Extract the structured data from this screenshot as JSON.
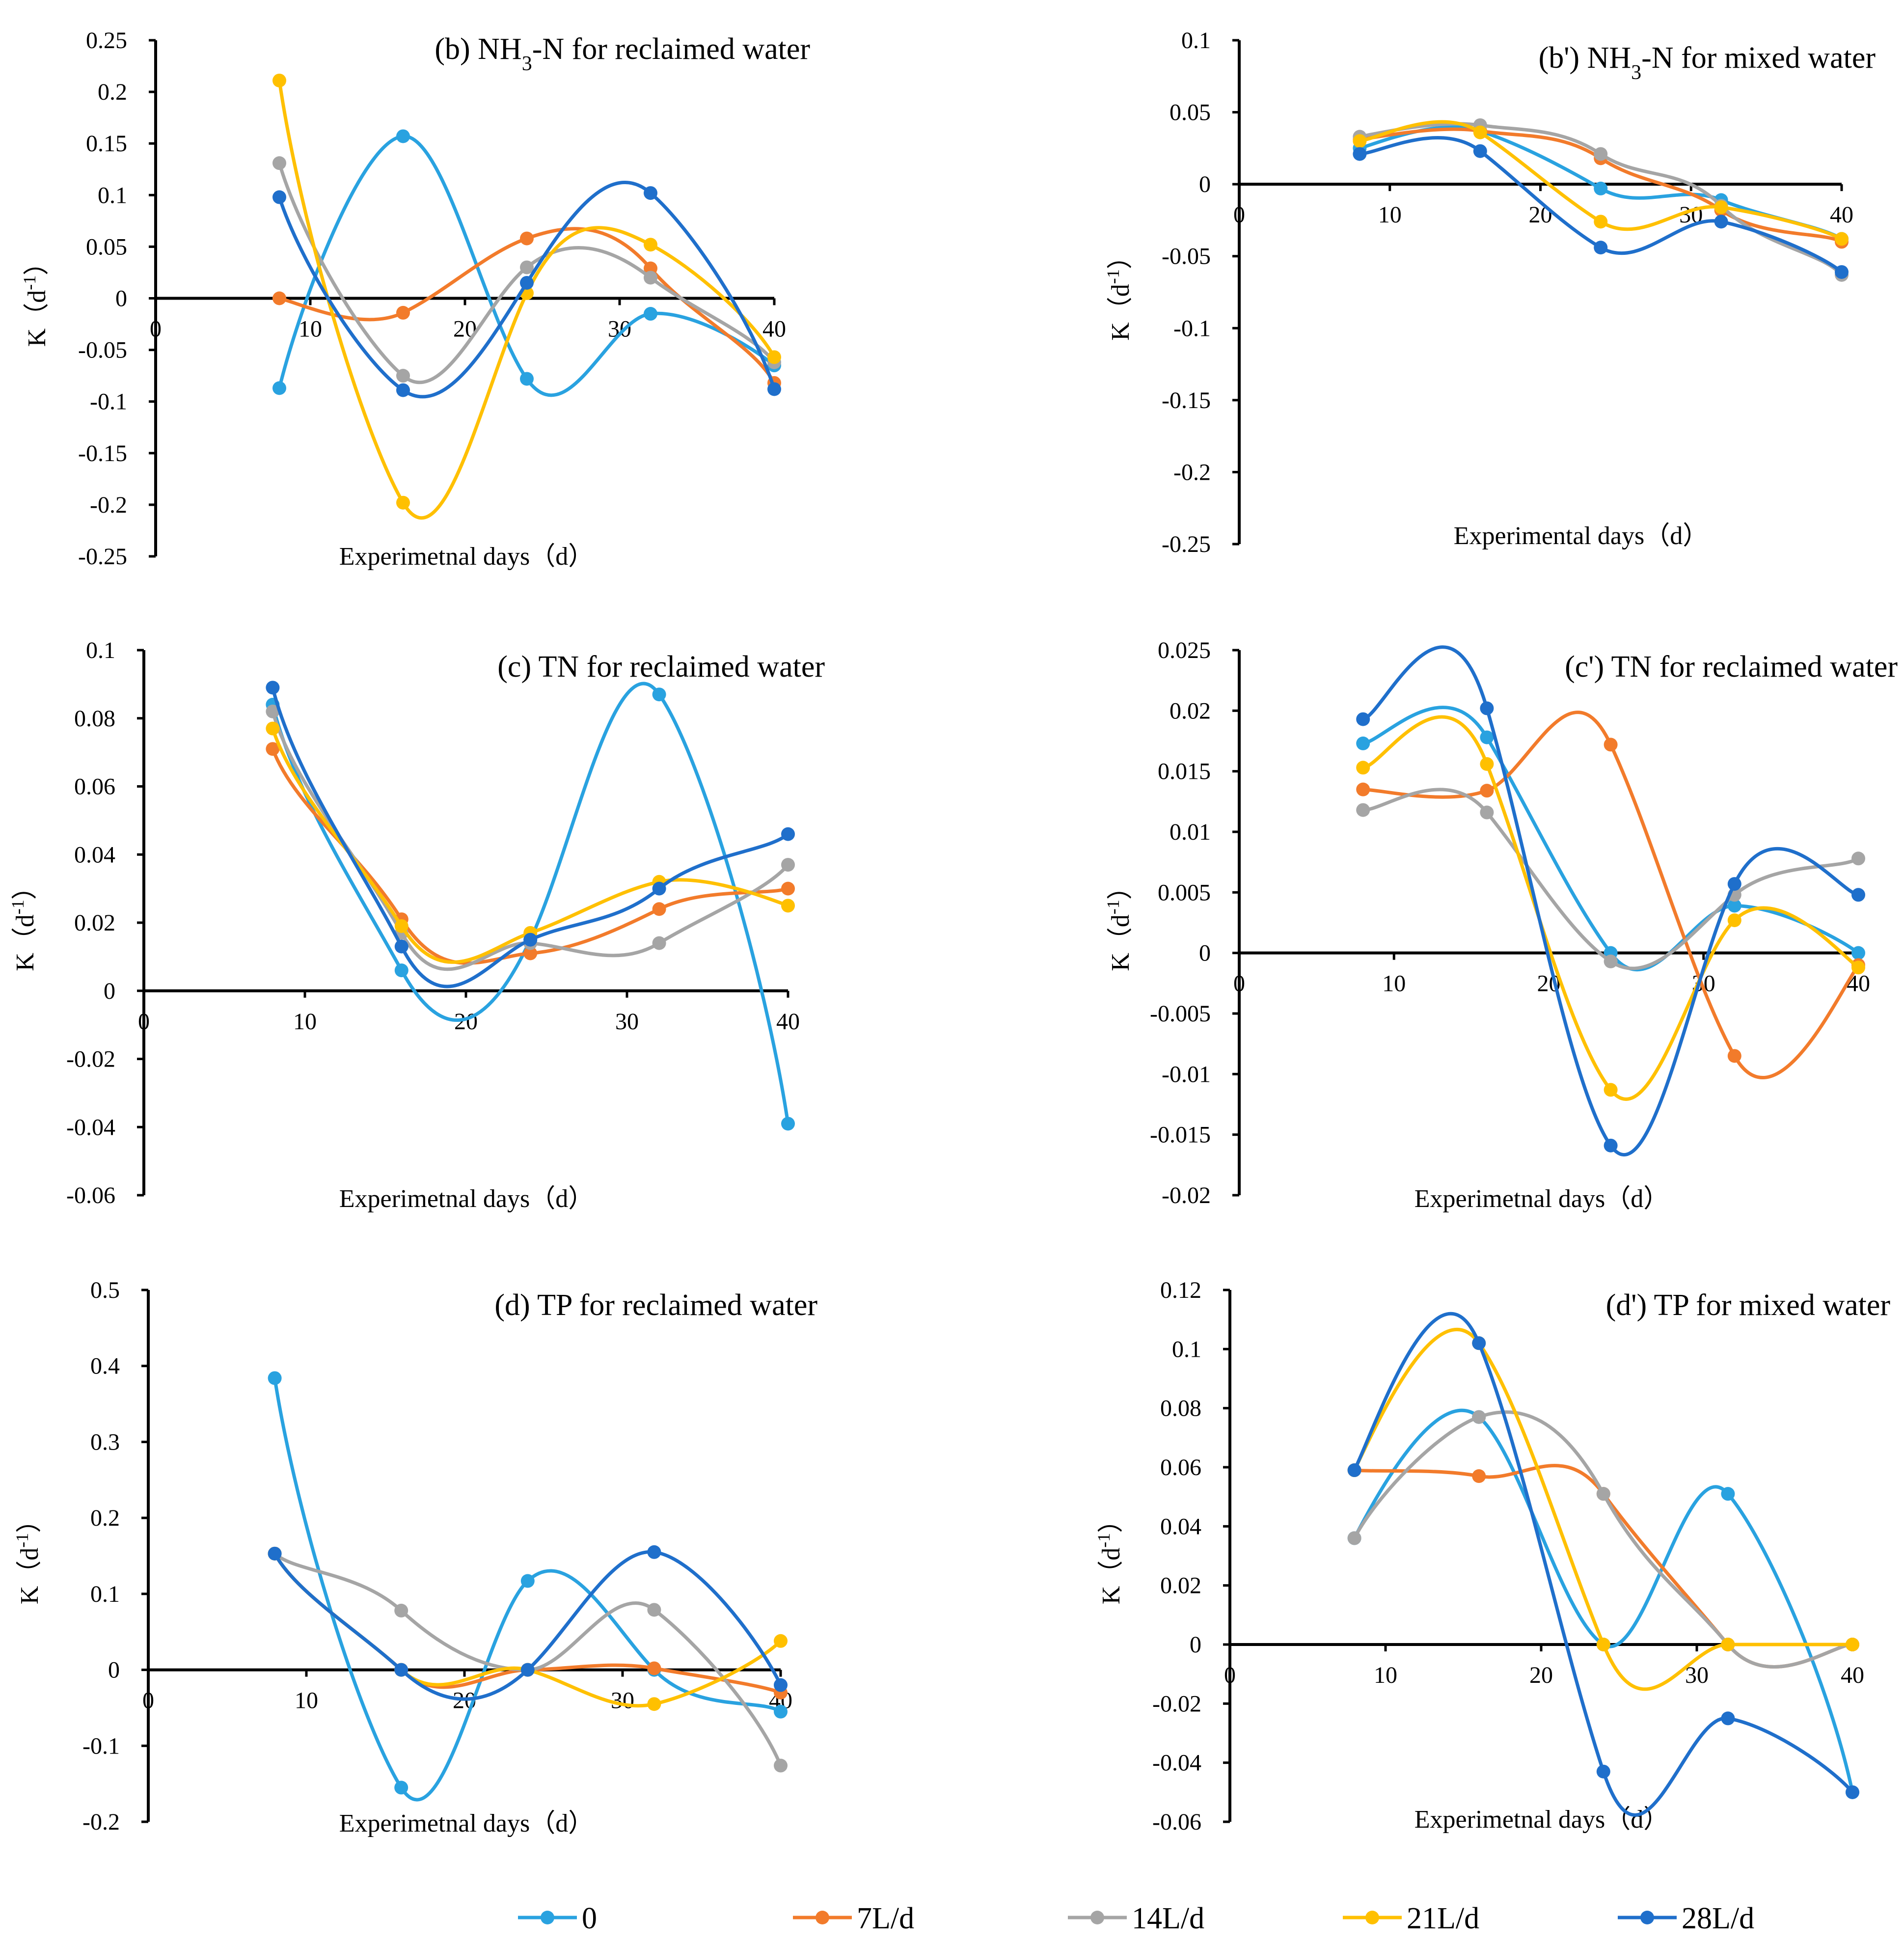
{
  "legend": {
    "entries": [
      {
        "name": "0",
        "color": "#29A2E0"
      },
      {
        "name": "7L/d",
        "color": "#F27B2B"
      },
      {
        "name": "14L/d",
        "color": "#A5A5A5"
      },
      {
        "name": "21L/d",
        "color": "#FFC000"
      },
      {
        "name": "28L/d",
        "color": "#1F6FCB"
      }
    ]
  },
  "chart_data": [
    {
      "type": "line",
      "title_parts": [
        "(b) NH",
        "3",
        "-N for reclaimed water"
      ],
      "xlabel": "Experimetnal days（d）",
      "ylabel_parts": [
        "K（d",
        "-1",
        "）"
      ],
      "xlim": [
        0,
        40
      ],
      "ylim": [
        -0.25,
        0.25
      ],
      "xticks": [
        0,
        10,
        20,
        30,
        40
      ],
      "xtick_labels": [
        "0",
        "10",
        "20",
        "30",
        "40"
      ],
      "yticks": [
        -0.25,
        -0.2,
        -0.15,
        -0.1,
        -0.05,
        0,
        0.05,
        0.1,
        0.15,
        0.2,
        0.25
      ],
      "ytick_labels": [
        "-0.25",
        "-0.2",
        "-0.15",
        "-0.1",
        "-0.05",
        "0",
        "0.05",
        "0.1",
        "0.15",
        "0.2",
        "0.25"
      ],
      "x": [
        8,
        16,
        24,
        32,
        40
      ],
      "series": [
        {
          "name": "0",
          "values": [
            -0.087,
            0.157,
            -0.078,
            -0.015,
            -0.065
          ]
        },
        {
          "name": "7L/d",
          "values": [
            0.0,
            -0.014,
            0.058,
            0.029,
            -0.082
          ]
        },
        {
          "name": "14L/d",
          "values": [
            0.131,
            -0.075,
            0.03,
            0.02,
            -0.062
          ]
        },
        {
          "name": "21L/d",
          "values": [
            0.211,
            -0.198,
            0.005,
            0.052,
            -0.057
          ]
        },
        {
          "name": "28L/d",
          "values": [
            0.098,
            -0.089,
            0.015,
            0.102,
            -0.088
          ]
        }
      ]
    },
    {
      "type": "line",
      "title_parts": [
        "(b') NH",
        "3",
        "-N for mixed water"
      ],
      "xlabel": "Experimental days（d）",
      "ylabel_parts": [
        "K（d",
        "-1",
        "）"
      ],
      "xlim": [
        0,
        40
      ],
      "ylim": [
        -0.25,
        0.1
      ],
      "xticks": [
        0,
        10,
        20,
        30,
        40
      ],
      "xtick_labels": [
        "0",
        "10",
        "20",
        "30",
        "40"
      ],
      "yticks": [
        -0.25,
        -0.2,
        -0.15,
        -0.1,
        -0.05,
        0,
        0.05,
        0.1
      ],
      "ytick_labels": [
        "-0.25",
        "-0.2",
        "-0.15",
        "-0.1",
        "-0.05",
        "0",
        "0.05",
        "0.1"
      ],
      "x": [
        8,
        16,
        24,
        32,
        40
      ],
      "series": [
        {
          "name": "0",
          "values": [
            0.025,
            0.037,
            -0.003,
            -0.011,
            -0.038
          ]
        },
        {
          "name": "7L/d",
          "values": [
            0.031,
            0.037,
            0.018,
            -0.018,
            -0.04
          ]
        },
        {
          "name": "14L/d",
          "values": [
            0.033,
            0.041,
            0.021,
            -0.015,
            -0.063
          ]
        },
        {
          "name": "21L/d",
          "values": [
            0.03,
            0.036,
            -0.026,
            -0.016,
            -0.038
          ]
        },
        {
          "name": "28L/d",
          "values": [
            0.021,
            0.023,
            -0.044,
            -0.026,
            -0.061
          ]
        }
      ]
    },
    {
      "type": "line",
      "title_parts": [
        "(c) TN for reclaimed water"
      ],
      "xlabel": "Experimetnal days（d）",
      "ylabel_parts": [
        "K（d",
        "-1",
        "）"
      ],
      "xlim": [
        0,
        40
      ],
      "ylim": [
        -0.06,
        0.1
      ],
      "xticks": [
        0,
        10,
        20,
        30,
        40
      ],
      "xtick_labels": [
        "0",
        "10",
        "20",
        "30",
        "40"
      ],
      "yticks": [
        -0.06,
        -0.04,
        -0.02,
        0,
        0.02,
        0.04,
        0.06,
        0.08,
        0.1
      ],
      "ytick_labels": [
        "-0.06",
        "-0.04",
        "-0.02",
        "0",
        "0.02",
        "0.04",
        "0.06",
        "0.08",
        "0.1"
      ],
      "x": [
        8,
        16,
        24,
        32,
        40
      ],
      "series": [
        {
          "name": "0",
          "values": [
            0.084,
            0.006,
            0.015,
            0.087,
            -0.039
          ]
        },
        {
          "name": "7L/d",
          "values": [
            0.071,
            0.021,
            0.011,
            0.024,
            0.03
          ]
        },
        {
          "name": "14L/d",
          "values": [
            0.082,
            0.017,
            0.014,
            0.014,
            0.037
          ]
        },
        {
          "name": "21L/d",
          "values": [
            0.077,
            0.019,
            0.017,
            0.032,
            0.025
          ]
        },
        {
          "name": "28L/d",
          "values": [
            0.089,
            0.013,
            0.015,
            0.03,
            0.046
          ]
        }
      ]
    },
    {
      "type": "line",
      "title_parts": [
        "(c') TN for reclaimed water"
      ],
      "xlabel": "Experimetnal days（d）",
      "ylabel_parts": [
        "K（d",
        "-1",
        "）"
      ],
      "xlim": [
        0,
        40
      ],
      "ylim": [
        -0.02,
        0.025
      ],
      "xticks": [
        0,
        10,
        20,
        30,
        40
      ],
      "xtick_labels": [
        "0",
        "10",
        "20",
        "30",
        "40"
      ],
      "yticks": [
        -0.02,
        -0.015,
        -0.01,
        -0.005,
        0,
        0.005,
        0.01,
        0.015,
        0.02,
        0.025
      ],
      "ytick_labels": [
        "-0.02",
        "-0.015",
        "-0.01",
        "-0.005",
        "0",
        "0.005",
        "0.01",
        "0.015",
        "0.02",
        "0.025"
      ],
      "x": [
        8,
        16,
        24,
        32,
        40
      ],
      "series": [
        {
          "name": "0",
          "values": [
            0.0173,
            0.0178,
            0.0,
            0.0039,
            0.0
          ]
        },
        {
          "name": "7L/d",
          "values": [
            0.0135,
            0.0134,
            0.0172,
            -0.0085,
            -0.001
          ]
        },
        {
          "name": "14L/d",
          "values": [
            0.0118,
            0.0116,
            -0.0007,
            0.0048,
            0.0078
          ]
        },
        {
          "name": "21L/d",
          "values": [
            0.0153,
            0.0156,
            -0.0113,
            0.0027,
            -0.0012
          ]
        },
        {
          "name": "28L/d",
          "values": [
            0.0193,
            0.0202,
            -0.0159,
            0.0057,
            0.0048
          ]
        }
      ]
    },
    {
      "type": "line",
      "title_parts": [
        "(d) TP for reclaimed water"
      ],
      "xlabel": "Experimetnal days（d）",
      "ylabel_parts": [
        "K（d",
        "-1",
        "）"
      ],
      "xlim": [
        0,
        40
      ],
      "ylim": [
        -0.2,
        0.5
      ],
      "xticks": [
        0,
        10,
        20,
        30,
        40
      ],
      "xtick_labels": [
        "0",
        "10",
        "20",
        "30",
        "40"
      ],
      "yticks": [
        -0.2,
        -0.1,
        0,
        0.1,
        0.2,
        0.3,
        0.4,
        0.5
      ],
      "ytick_labels": [
        "-0.2",
        "-0.1",
        "0",
        "0.1",
        "0.2",
        "0.3",
        "0.4",
        "0.5"
      ],
      "x": [
        8,
        16,
        24,
        32,
        40
      ],
      "series": [
        {
          "name": "0",
          "values": [
            0.384,
            -0.155,
            0.117,
            0.0,
            -0.055
          ]
        },
        {
          "name": "7L/d",
          "values": [
            0.153,
            0.0,
            0.0,
            0.002,
            -0.03
          ]
        },
        {
          "name": "14L/d",
          "values": [
            0.153,
            0.078,
            0.0,
            0.079,
            -0.126
          ]
        },
        {
          "name": "21L/d",
          "values": [
            0.153,
            0.0,
            0.0,
            -0.045,
            0.038
          ]
        },
        {
          "name": "28L/d",
          "values": [
            0.153,
            0.0,
            0.0,
            0.155,
            -0.02
          ]
        }
      ]
    },
    {
      "type": "line",
      "title_parts": [
        "(d') TP for mixed water"
      ],
      "xlabel": "Experimetnal days（d）",
      "ylabel_parts": [
        "K（d",
        "-1",
        "）"
      ],
      "xlim": [
        0,
        40
      ],
      "ylim": [
        -0.06,
        0.12
      ],
      "xticks": [
        0,
        10,
        20,
        30,
        40
      ],
      "xtick_labels": [
        "0",
        "10",
        "20",
        "30",
        "40"
      ],
      "yticks": [
        -0.06,
        -0.04,
        -0.02,
        0,
        0.02,
        0.04,
        0.06,
        0.08,
        0.1,
        0.12
      ],
      "ytick_labels": [
        "-0.06",
        "-0.04",
        "-0.02",
        "0",
        "0.02",
        "0.04",
        "0.06",
        "0.08",
        "0.1",
        "0.12"
      ],
      "x": [
        8,
        16,
        24,
        32,
        40
      ],
      "series": [
        {
          "name": "0",
          "values": [
            0.036,
            0.077,
            0.0,
            0.051,
            -0.05
          ]
        },
        {
          "name": "7L/d",
          "values": [
            0.059,
            0.057,
            0.051,
            0.0,
            0.0
          ]
        },
        {
          "name": "14L/d",
          "values": [
            0.036,
            0.077,
            0.051,
            0.0,
            0.0
          ]
        },
        {
          "name": "21L/d",
          "values": [
            0.059,
            0.102,
            0.0,
            0.0,
            0.0
          ]
        },
        {
          "name": "28L/d",
          "values": [
            0.059,
            0.102,
            -0.043,
            -0.025,
            -0.05
          ]
        }
      ]
    }
  ]
}
